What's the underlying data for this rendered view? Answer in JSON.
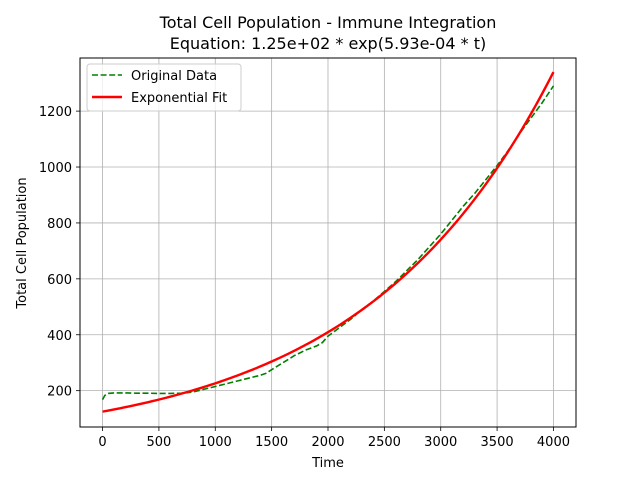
{
  "chart_data": {
    "type": "line",
    "title_line1": "Total Cell Population - Immune Integration",
    "title_line2": "Equation: 1.25e+02 * exp(5.93e-04 * t)",
    "xlabel": "Time",
    "ylabel": "Total Cell Population",
    "xlim": [
      -200,
      4200
    ],
    "ylim": [
      70,
      1390
    ],
    "x_ticks": [
      0,
      500,
      1000,
      1500,
      2000,
      2500,
      3000,
      3500,
      4000
    ],
    "x_tick_labels": [
      "0",
      "500",
      "1000",
      "1500",
      "2000",
      "2500",
      "3000",
      "3500",
      "4000"
    ],
    "y_ticks": [
      200,
      400,
      600,
      800,
      1000,
      1200
    ],
    "y_tick_labels": [
      "200",
      "400",
      "600",
      "800",
      "1000",
      "1200"
    ],
    "grid": true,
    "legend_position": "top-left",
    "series": [
      {
        "name": "Original Data",
        "color": "#008000",
        "style": "dashed",
        "x": [
          0,
          20,
          50,
          100,
          200,
          300,
          400,
          500,
          600,
          700,
          800,
          900,
          1000,
          1100,
          1200,
          1300,
          1400,
          1450,
          1500,
          1600,
          1700,
          1800,
          1900,
          1950,
          2000,
          2100,
          2200,
          2300,
          2400,
          2500,
          2600,
          2700,
          2800,
          2900,
          3000,
          3100,
          3200,
          3300,
          3400,
          3500,
          3600,
          3700,
          3800,
          3900,
          4000
        ],
        "y": [
          168,
          183,
          190,
          192,
          192,
          191,
          191,
          190,
          190,
          191,
          195,
          205,
          215,
          225,
          235,
          245,
          255,
          262,
          275,
          300,
          325,
          345,
          360,
          372,
          395,
          425,
          455,
          490,
          520,
          555,
          590,
          630,
          670,
          715,
          760,
          810,
          860,
          905,
          955,
          1005,
          1060,
          1120,
          1175,
          1230,
          1290
        ]
      },
      {
        "name": "Exponential Fit",
        "color": "#ff0000",
        "style": "solid",
        "fit": {
          "a": 125,
          "b": 0.000593
        },
        "x_range": [
          0,
          4000
        ]
      }
    ]
  }
}
